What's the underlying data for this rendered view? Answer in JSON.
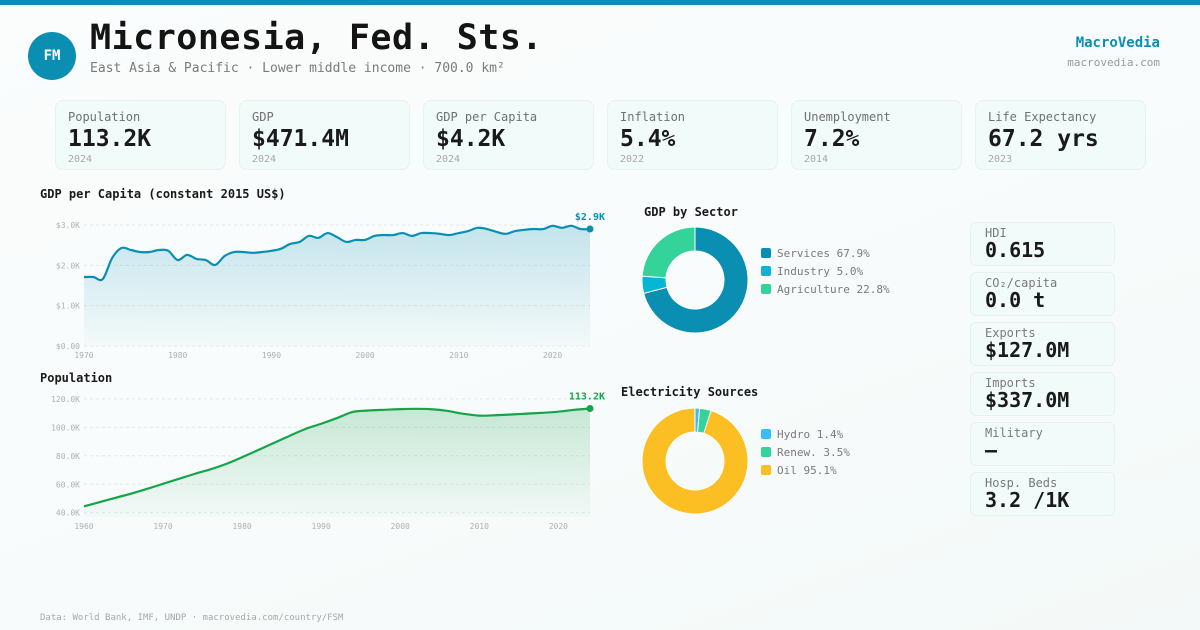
{
  "header": {
    "flag_code": "FM",
    "title": "Micronesia, Fed. Sts.",
    "subtitle": "East Asia & Pacific · Lower middle income · 700.0 km²",
    "brand": "MacroVedia",
    "brand_url": "macrovedia.com"
  },
  "colors": {
    "accent": "#0a8fb3",
    "population": "#16a34a",
    "services": "#0a8fb3",
    "industry": "#06b6d4",
    "agriculture": "#34d399",
    "hydro": "#38bdf8",
    "renew": "#34d399",
    "oil": "#fbbf24"
  },
  "kpis": [
    {
      "label": "Population",
      "value": "113.2K",
      "year": "2024"
    },
    {
      "label": "GDP",
      "value": "$471.4M",
      "year": "2024"
    },
    {
      "label": "GDP per Capita",
      "value": "$4.2K",
      "year": "2024"
    },
    {
      "label": "Inflation",
      "value": "5.4%",
      "year": "2022"
    },
    {
      "label": "Unemployment",
      "value": "7.2%",
      "year": "2014"
    },
    {
      "label": "Life Expectancy",
      "value": "67.2 yrs",
      "year": "2023"
    }
  ],
  "side_stats": [
    {
      "label": "HDI",
      "value": "0.615"
    },
    {
      "label": "CO₂/capita",
      "value": "0.0 t"
    },
    {
      "label": "Exports",
      "value": "$127.0M"
    },
    {
      "label": "Imports",
      "value": "$337.0M"
    },
    {
      "label": "Military",
      "value": "—"
    },
    {
      "label": "Hosp. Beds",
      "value": "3.2 /1K"
    }
  ],
  "footer": "Data: World Bank, IMF, UNDP · macrovedia.com/country/FSM",
  "chart_data": [
    {
      "type": "area",
      "title": "GDP per Capita (constant 2015 US$)",
      "xlabel": "",
      "ylabel": "",
      "x": [
        1970,
        1971,
        1972,
        1973,
        1974,
        1975,
        1976,
        1977,
        1978,
        1979,
        1980,
        1981,
        1982,
        1983,
        1984,
        1985,
        1986,
        1987,
        1988,
        1989,
        1990,
        1991,
        1992,
        1993,
        1994,
        1995,
        1996,
        1997,
        1998,
        1999,
        2000,
        2001,
        2002,
        2003,
        2004,
        2005,
        2006,
        2007,
        2008,
        2009,
        2010,
        2011,
        2012,
        2013,
        2014,
        2015,
        2016,
        2017,
        2018,
        2019,
        2020,
        2021,
        2022,
        2023,
        2024
      ],
      "values": [
        1710,
        1710,
        1660,
        2180,
        2430,
        2380,
        2330,
        2330,
        2380,
        2360,
        2130,
        2260,
        2160,
        2130,
        2010,
        2230,
        2330,
        2330,
        2310,
        2330,
        2360,
        2410,
        2530,
        2580,
        2730,
        2680,
        2800,
        2700,
        2580,
        2630,
        2630,
        2730,
        2750,
        2750,
        2800,
        2730,
        2800,
        2800,
        2780,
        2750,
        2800,
        2850,
        2930,
        2900,
        2830,
        2780,
        2850,
        2880,
        2900,
        2900,
        2980,
        2930,
        2980,
        2900,
        2900
      ],
      "ylim": [
        0,
        3000
      ],
      "yticks": [
        0,
        1000,
        2000,
        3000
      ],
      "ytick_labels": [
        "$0.00",
        "$1.0K",
        "$2.0K",
        "$3.0K"
      ],
      "xticks": [
        1970,
        1980,
        1990,
        2000,
        2010,
        2020
      ],
      "xtick_labels": [
        "1970",
        "1980",
        "1990",
        "2000",
        "2010",
        "2020"
      ],
      "last_label": "$2.9K",
      "grid": true
    },
    {
      "type": "area",
      "title": "Population",
      "xlabel": "",
      "ylabel": "",
      "x": [
        1960,
        1962,
        1964,
        1966,
        1968,
        1970,
        1972,
        1974,
        1976,
        1978,
        1980,
        1982,
        1984,
        1986,
        1988,
        1990,
        1992,
        1994,
        1996,
        1998,
        2000,
        2002,
        2004,
        2006,
        2008,
        2010,
        2012,
        2014,
        2016,
        2018,
        2020,
        2022,
        2024
      ],
      "values": [
        44500,
        47500,
        50500,
        53500,
        56800,
        60300,
        63800,
        67300,
        70500,
        74300,
        79000,
        84000,
        89000,
        94000,
        98800,
        102500,
        106500,
        110800,
        111800,
        112300,
        112800,
        113000,
        112700,
        111500,
        109500,
        108200,
        108500,
        109000,
        109600,
        110200,
        111000,
        112300,
        113200
      ],
      "ylim": [
        37000,
        122000
      ],
      "yticks": [
        40000,
        60000,
        80000,
        100000,
        120000
      ],
      "ytick_labels": [
        "40.0K",
        "60.0K",
        "80.0K",
        "100.0K",
        "120.0K"
      ],
      "xticks": [
        1960,
        1970,
        1980,
        1990,
        2000,
        2010,
        2020
      ],
      "xtick_labels": [
        "1960",
        "1970",
        "1980",
        "1990",
        "2000",
        "2010",
        "2020"
      ],
      "last_label": "113.2K",
      "grid": true
    },
    {
      "type": "pie",
      "title": "GDP by Sector",
      "labels": [
        "Services",
        "Industry",
        "Agriculture"
      ],
      "values": [
        67.9,
        5.0,
        22.8
      ],
      "legend": [
        "Services 67.9%",
        "Industry 5.0%",
        "Agriculture 22.8%"
      ],
      "legend_position": "right"
    },
    {
      "type": "pie",
      "title": "Electricity Sources",
      "labels": [
        "Hydro",
        "Renew.",
        "Oil"
      ],
      "values": [
        1.4,
        3.5,
        95.1
      ],
      "legend": [
        "Hydro 1.4%",
        "Renew. 3.5%",
        "Oil 95.1%"
      ],
      "legend_position": "right"
    }
  ]
}
